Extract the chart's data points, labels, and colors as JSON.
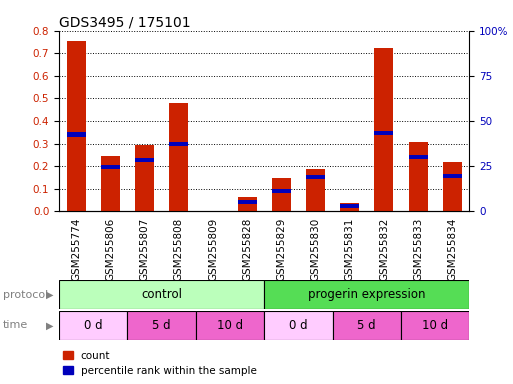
{
  "title": "GDS3495 / 175101",
  "samples": [
    "GSM255774",
    "GSM255806",
    "GSM255807",
    "GSM255808",
    "GSM255809",
    "GSM255828",
    "GSM255829",
    "GSM255830",
    "GSM255831",
    "GSM255832",
    "GSM255833",
    "GSM255834"
  ],
  "red_values": [
    0.755,
    0.245,
    0.295,
    0.48,
    0.0,
    0.065,
    0.148,
    0.188,
    0.038,
    0.725,
    0.308,
    0.218
  ],
  "blue_values": [
    0.34,
    0.198,
    0.228,
    0.298,
    0.0,
    0.042,
    0.09,
    0.152,
    0.022,
    0.345,
    0.242,
    0.158
  ],
  "blue_bar_height": 0.018,
  "ylim": [
    0,
    0.8
  ],
  "yticks_left": [
    0,
    0.2,
    0.4,
    0.6,
    0.8
  ],
  "yticks_right": [
    0,
    25,
    50,
    75,
    100
  ],
  "bar_width": 0.55,
  "red_color": "#cc2200",
  "blue_color": "#0000bb",
  "bg_color": "#ffffff",
  "protocol_control": {
    "label": "control",
    "start": 0,
    "end": 6,
    "color": "#bbffbb"
  },
  "protocol_progerin": {
    "label": "progerin expression",
    "start": 6,
    "end": 12,
    "color": "#55dd55"
  },
  "time_groups": [
    {
      "label": "0 d",
      "start": 0,
      "end": 2,
      "color": "#ffccff"
    },
    {
      "label": "5 d",
      "start": 2,
      "end": 4,
      "color": "#ee66cc"
    },
    {
      "label": "10 d",
      "start": 4,
      "end": 6,
      "color": "#ee66cc"
    },
    {
      "label": "0 d",
      "start": 6,
      "end": 8,
      "color": "#ffccff"
    },
    {
      "label": "5 d",
      "start": 8,
      "end": 10,
      "color": "#ee66cc"
    },
    {
      "label": "10 d",
      "start": 10,
      "end": 12,
      "color": "#ee66cc"
    }
  ],
  "legend_count": "count",
  "legend_percentile": "percentile rank within the sample",
  "xlabel_protocol": "protocol",
  "xlabel_time": "time",
  "title_fontsize": 10,
  "tick_fontsize": 7.5,
  "label_fontsize": 8.5,
  "annot_fontsize": 8
}
